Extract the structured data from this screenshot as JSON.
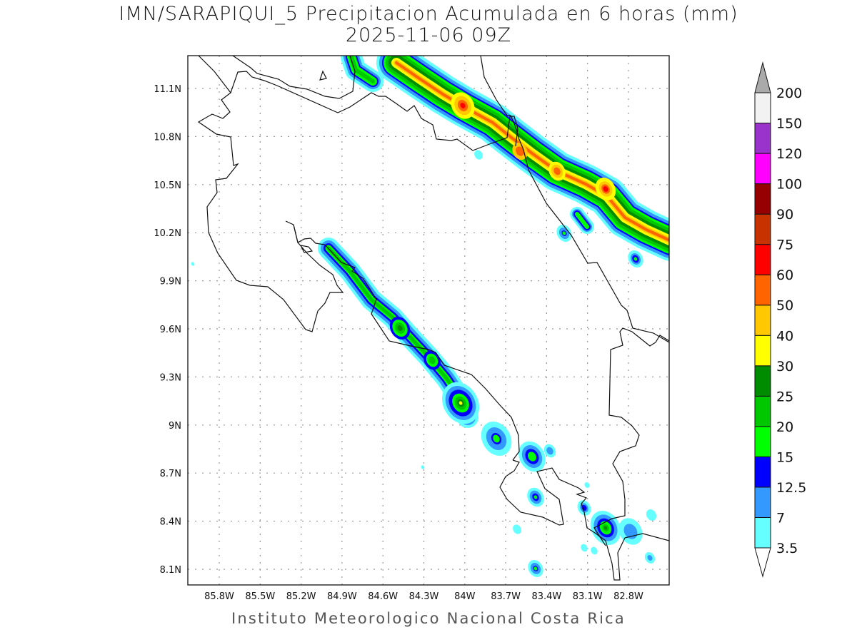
{
  "header": {
    "title": "IMN/SARAPIQUI_5 Precipitacion Acumulada en 6 horas (mm)",
    "subtitle": "2025-11-06 09Z"
  },
  "footer": "Instituto Meteorologico Nacional Costa Rica",
  "axes": {
    "lon_ticks": [
      "85.8W",
      "85.5W",
      "85.2W",
      "84.9W",
      "84.6W",
      "84.3W",
      "84W",
      "83.7W",
      "83.4W",
      "83.1W",
      "82.8W"
    ],
    "lat_ticks": [
      "11.1N",
      "10.8N",
      "10.5N",
      "10.2N",
      "9.9N",
      "9.6N",
      "9.3N",
      "9N",
      "8.7N",
      "8.4N",
      "8.1N"
    ]
  },
  "colorbar": {
    "labels": [
      "3.5",
      "7",
      "12.5",
      "15",
      "20",
      "25",
      "30",
      "40",
      "50",
      "60",
      "75",
      "90",
      "100",
      "120",
      "150",
      "200"
    ],
    "colors": [
      "#66ffff",
      "#3399ff",
      "#0000ff",
      "#00ff00",
      "#00c800",
      "#008c00",
      "#ffff00",
      "#ffc800",
      "#ff6400",
      "#ff0000",
      "#c83200",
      "#960000",
      "#ff00ff",
      "#9933cc",
      "#f2f2f2"
    ],
    "over_color": "#aaaaaa",
    "under_color": "#ffffff"
  }
}
